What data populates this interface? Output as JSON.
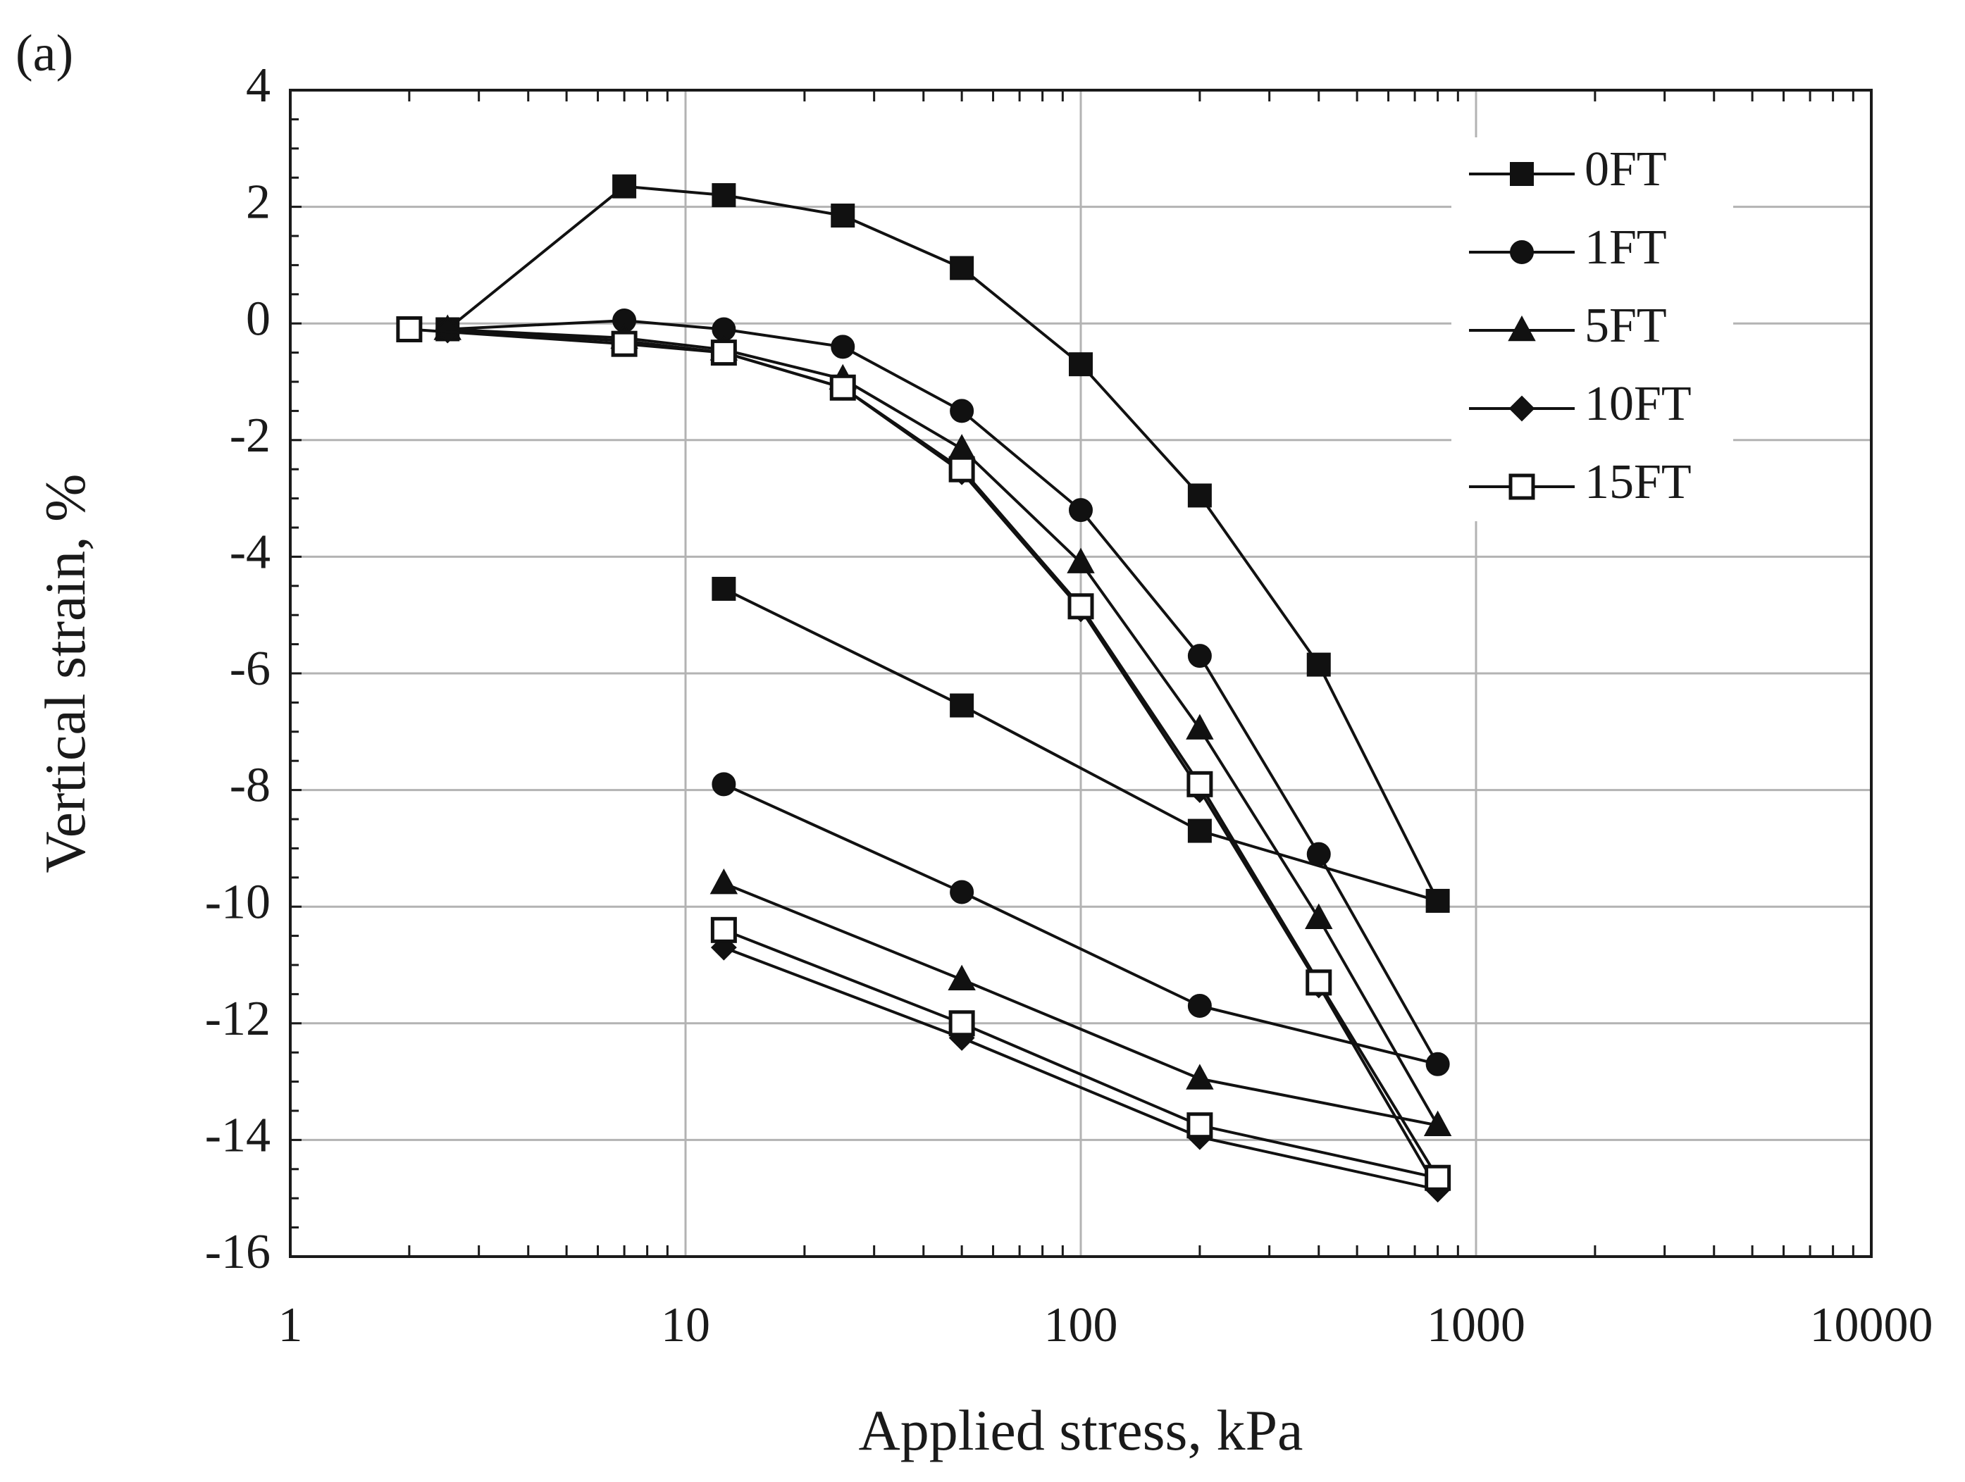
{
  "panel_label": "(a)",
  "chart_data": {
    "type": "line",
    "xscale": "log",
    "xlabel": "Applied stress, kPa",
    "ylabel": "Vertical strain, %",
    "xlim": [
      1,
      10000
    ],
    "ylim": [
      -16,
      4
    ],
    "x_ticks": [
      1,
      10,
      100,
      1000,
      10000
    ],
    "x_tick_labels": [
      "1",
      "10",
      "100",
      "1000",
      "10000"
    ],
    "y_ticks": [
      4,
      2,
      0,
      -2,
      -4,
      -6,
      -8,
      -10,
      -12,
      -14,
      -16
    ],
    "y_tick_labels": [
      "4",
      "2",
      "0",
      "-2",
      "-4",
      "-6",
      "-8",
      "-10",
      "-12",
      "-14",
      "-16"
    ],
    "grid": true,
    "legend_position": "top-right",
    "series": [
      {
        "name": "0FT",
        "marker": "square",
        "filled": true,
        "loading": [
          [
            2.5,
            -0.1
          ],
          [
            7,
            2.35
          ],
          [
            12.5,
            2.2
          ],
          [
            25,
            1.85
          ],
          [
            50,
            0.95
          ],
          [
            100,
            -0.7
          ],
          [
            200,
            -2.95
          ],
          [
            400,
            -5.85
          ],
          [
            800,
            -9.9
          ]
        ],
        "unloading": [
          [
            800,
            -9.9
          ],
          [
            200,
            -8.7
          ],
          [
            50,
            -6.55
          ],
          [
            12.5,
            -4.55
          ]
        ]
      },
      {
        "name": "1FT",
        "marker": "circle",
        "filled": true,
        "loading": [
          [
            2.5,
            -0.1
          ],
          [
            7,
            0.05
          ],
          [
            12.5,
            -0.1
          ],
          [
            25,
            -0.4
          ],
          [
            50,
            -1.5
          ],
          [
            100,
            -3.2
          ],
          [
            200,
            -5.7
          ],
          [
            400,
            -9.1
          ],
          [
            800,
            -12.7
          ]
        ],
        "unloading": [
          [
            800,
            -12.7
          ],
          [
            200,
            -11.7
          ],
          [
            50,
            -9.75
          ],
          [
            12.5,
            -7.9
          ]
        ]
      },
      {
        "name": "5FT",
        "marker": "triangle",
        "filled": true,
        "loading": [
          [
            2.5,
            -0.1
          ],
          [
            7,
            -0.25
          ],
          [
            12.5,
            -0.45
          ],
          [
            25,
            -0.95
          ],
          [
            50,
            -2.15
          ],
          [
            100,
            -4.1
          ],
          [
            200,
            -6.95
          ],
          [
            400,
            -10.2
          ],
          [
            800,
            -13.75
          ]
        ],
        "unloading": [
          [
            800,
            -13.75
          ],
          [
            200,
            -12.95
          ],
          [
            50,
            -11.25
          ],
          [
            12.5,
            -9.6
          ]
        ]
      },
      {
        "name": "10FT",
        "marker": "diamond",
        "filled": true,
        "loading": [
          [
            2.5,
            -0.12
          ],
          [
            7,
            -0.3
          ],
          [
            12.5,
            -0.5
          ],
          [
            25,
            -1.1
          ],
          [
            50,
            -2.55
          ],
          [
            100,
            -4.9
          ],
          [
            200,
            -8.0
          ],
          [
            400,
            -11.35
          ],
          [
            800,
            -14.85
          ]
        ],
        "unloading": [
          [
            800,
            -14.85
          ],
          [
            200,
            -13.95
          ],
          [
            50,
            -12.25
          ],
          [
            12.5,
            -10.7
          ]
        ]
      },
      {
        "name": "15FT",
        "marker": "square",
        "filled": false,
        "loading": [
          [
            2,
            -0.1
          ],
          [
            7,
            -0.35
          ],
          [
            12.5,
            -0.5
          ],
          [
            25,
            -1.1
          ],
          [
            50,
            -2.5
          ],
          [
            100,
            -4.85
          ],
          [
            200,
            -7.9
          ],
          [
            400,
            -11.3
          ],
          [
            800,
            -14.65
          ]
        ],
        "unloading": [
          [
            800,
            -14.65
          ],
          [
            200,
            -13.75
          ],
          [
            50,
            -12.0
          ],
          [
            12.5,
            -10.4
          ]
        ]
      }
    ]
  }
}
